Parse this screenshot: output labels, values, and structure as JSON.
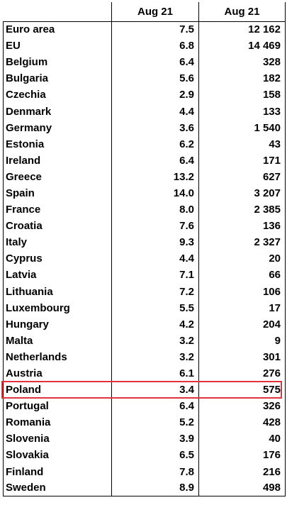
{
  "table": {
    "columns": [
      "",
      "Aug 21",
      "Aug 21"
    ],
    "rows": [
      {
        "country": "Euro area",
        "rate": "7.5",
        "count": "12 162"
      },
      {
        "country": "EU",
        "rate": "6.8",
        "count": "14 469"
      },
      {
        "country": "Belgium",
        "rate": "6.4",
        "count": "328"
      },
      {
        "country": "Bulgaria",
        "rate": "5.6",
        "count": "182"
      },
      {
        "country": "Czechia",
        "rate": "2.9",
        "count": "158"
      },
      {
        "country": "Denmark",
        "rate": "4.4",
        "count": "133"
      },
      {
        "country": "Germany",
        "rate": "3.6",
        "count": "1 540"
      },
      {
        "country": "Estonia",
        "rate": "6.2",
        "count": "43"
      },
      {
        "country": "Ireland",
        "rate": "6.4",
        "count": "171"
      },
      {
        "country": "Greece",
        "rate": "13.2",
        "count": "627"
      },
      {
        "country": "Spain",
        "rate": "14.0",
        "count": "3 207"
      },
      {
        "country": "France",
        "rate": "8.0",
        "count": "2 385"
      },
      {
        "country": "Croatia",
        "rate": "7.6",
        "count": "136"
      },
      {
        "country": "Italy",
        "rate": "9.3",
        "count": "2 327"
      },
      {
        "country": "Cyprus",
        "rate": "4.4",
        "count": "20"
      },
      {
        "country": "Latvia",
        "rate": "7.1",
        "count": "66"
      },
      {
        "country": "Lithuania",
        "rate": "7.2",
        "count": "106"
      },
      {
        "country": "Luxembourg",
        "rate": "5.5",
        "count": "17"
      },
      {
        "country": "Hungary",
        "rate": "4.2",
        "count": "204"
      },
      {
        "country": "Malta",
        "rate": "3.2",
        "count": "9"
      },
      {
        "country": "Netherlands",
        "rate": "3.2",
        "count": "301"
      },
      {
        "country": "Austria",
        "rate": "6.1",
        "count": "276"
      },
      {
        "country": "Poland",
        "rate": "3.4",
        "count": "575"
      },
      {
        "country": "Portugal",
        "rate": "6.4",
        "count": "326"
      },
      {
        "country": "Romania",
        "rate": "5.2",
        "count": "428"
      },
      {
        "country": "Slovenia",
        "rate": "3.9",
        "count": "40"
      },
      {
        "country": "Slovakia",
        "rate": "6.5",
        "count": "176"
      },
      {
        "country": "Finland",
        "rate": "7.8",
        "count": "216"
      },
      {
        "country": "Sweden",
        "rate": "8.9",
        "count": "498"
      }
    ],
    "highlighted_row": "Poland",
    "highlight_color": "#e0333c"
  }
}
